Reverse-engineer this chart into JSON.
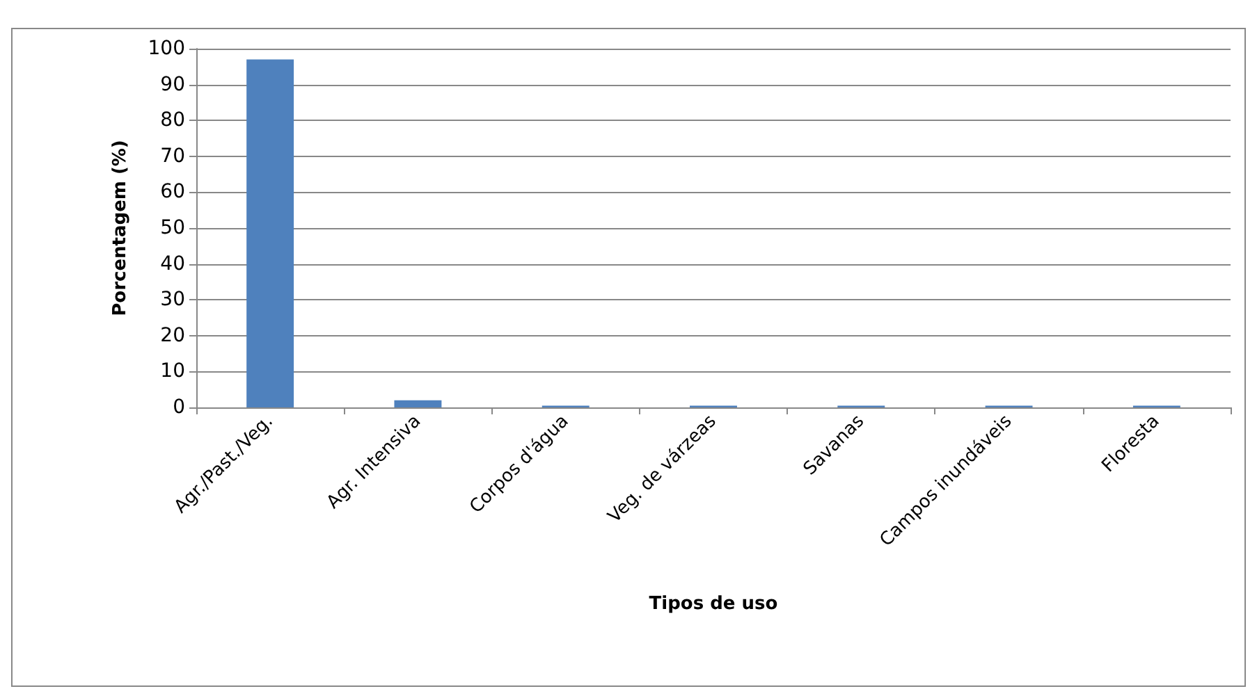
{
  "chart_data": {
    "type": "bar",
    "xlabel": "Tipos de uso",
    "ylabel": "Porcentagem (%)",
    "categories": [
      "Agr./Past./Veg.",
      "Agr. Intensiva",
      "Corpos d'água",
      "Veg. de várzeas",
      "Savanas",
      "Campos inundáveis",
      "Floresta"
    ],
    "values": [
      97,
      2,
      0.5,
      0.5,
      0.5,
      0.5,
      0.5
    ],
    "color": "#4f81bd",
    "ylim": [
      0,
      100
    ],
    "yticks": [
      0,
      10,
      20,
      30,
      40,
      50,
      60,
      70,
      80,
      90,
      100
    ],
    "grid": "y"
  }
}
